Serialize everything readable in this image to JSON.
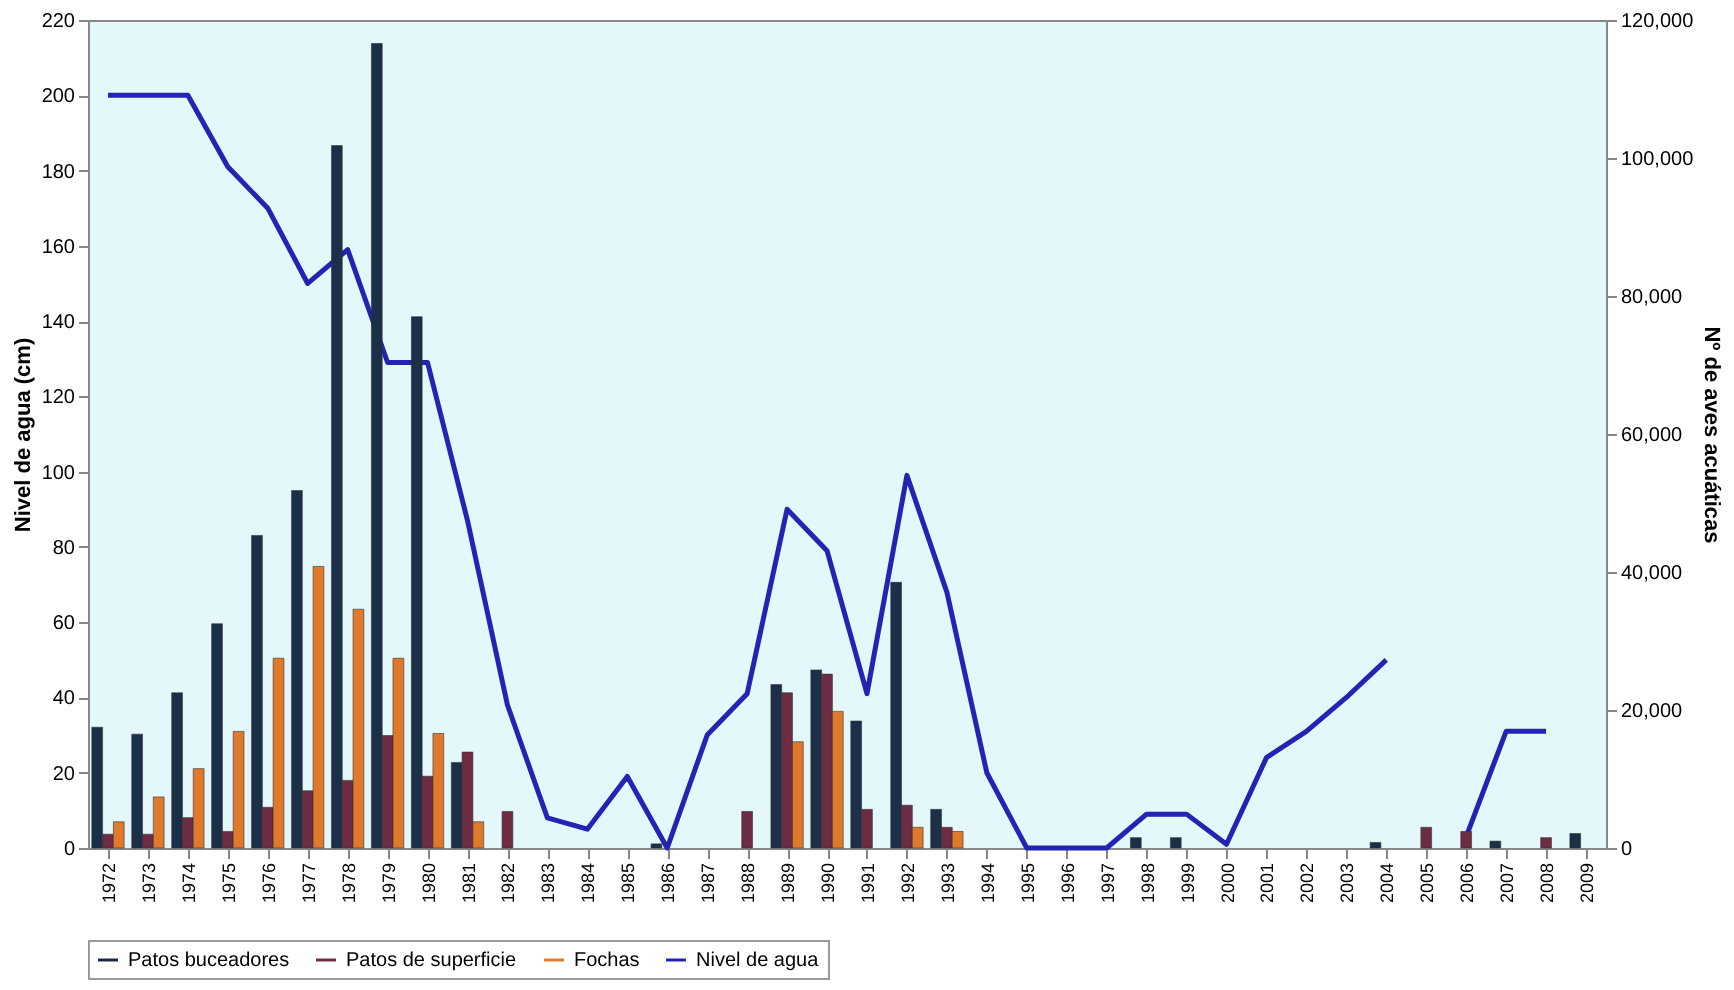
{
  "chart_data": {
    "type": "bar",
    "ylabel": "Nivel de agua (cm)",
    "y2label": "Nº de aves acuáticas",
    "categories": [
      "1972",
      "1973",
      "1974",
      "1975",
      "1976",
      "1977",
      "1978",
      "1979",
      "1980",
      "1981",
      "1982",
      "1983",
      "1984",
      "1985",
      "1986",
      "1987",
      "1988",
      "1989",
      "1990",
      "1991",
      "1992",
      "1993",
      "1994",
      "1995",
      "1996",
      "1997",
      "1998",
      "1999",
      "2000",
      "2001",
      "2002",
      "2003",
      "2004",
      "2005",
      "2006",
      "2007",
      "2008",
      "2009"
    ],
    "series": [
      {
        "name": "Patos buceadores",
        "color": "#1b3048",
        "axis": "y2",
        "values": [
          17500,
          16500,
          22500,
          32500,
          45300,
          51800,
          101800,
          116600,
          77000,
          12400,
          null,
          null,
          null,
          null,
          600,
          null,
          null,
          23700,
          25800,
          18400,
          38500,
          5600,
          null,
          null,
          null,
          null,
          1500,
          1500,
          null,
          null,
          null,
          null,
          800,
          null,
          null,
          1000,
          null,
          2100
        ]
      },
      {
        "name": "Patos de superficie",
        "color": "#6e2c44",
        "axis": "y2",
        "values": [
          2000,
          2000,
          4400,
          2400,
          5900,
          8300,
          9800,
          16300,
          10400,
          13900,
          5300,
          null,
          null,
          null,
          null,
          null,
          5300,
          22500,
          25200,
          5600,
          6200,
          3000,
          null,
          null,
          null,
          null,
          null,
          null,
          null,
          null,
          null,
          null,
          null,
          3000,
          2400,
          null,
          1500,
          null
        ]
      },
      {
        "name": "Fochas",
        "color": "#e07a2a",
        "axis": "y2",
        "values": [
          3800,
          7400,
          11500,
          16900,
          27500,
          40800,
          34600,
          27500,
          16600,
          3800,
          null,
          null,
          null,
          null,
          null,
          null,
          null,
          15400,
          19800,
          null,
          3000,
          2400,
          null,
          null,
          null,
          null,
          null,
          null,
          null,
          null,
          null,
          null,
          null,
          null,
          null,
          null,
          null,
          null
        ]
      },
      {
        "name": "Nivel de agua",
        "color": "#2323b4",
        "type": "line",
        "values": [
          200,
          200,
          200,
          181,
          170,
          150,
          159,
          129,
          129,
          87,
          38,
          8,
          5,
          19,
          0,
          30,
          41,
          90,
          79,
          41,
          99,
          68,
          20,
          0,
          0,
          0,
          9,
          9,
          1,
          24,
          31,
          40,
          50,
          null,
          3,
          31,
          31,
          null
        ]
      }
    ],
    "ylim": [
      0,
      220
    ],
    "yticks": [
      0,
      20,
      40,
      60,
      80,
      100,
      120,
      140,
      160,
      180,
      200,
      220
    ],
    "y2lim": [
      0,
      120000
    ],
    "y2ticks": [
      0,
      {
        "value": 20000,
        "label": "20,000"
      },
      {
        "value": 40000,
        "label": "40,000"
      },
      {
        "value": 60000,
        "label": "60,000"
      },
      {
        "value": 80000,
        "label": "80,000"
      },
      {
        "value": 100000,
        "label": "100,000"
      },
      {
        "value": 120000,
        "label": "120,000"
      }
    ],
    "grid": false,
    "legend": "bottom"
  }
}
